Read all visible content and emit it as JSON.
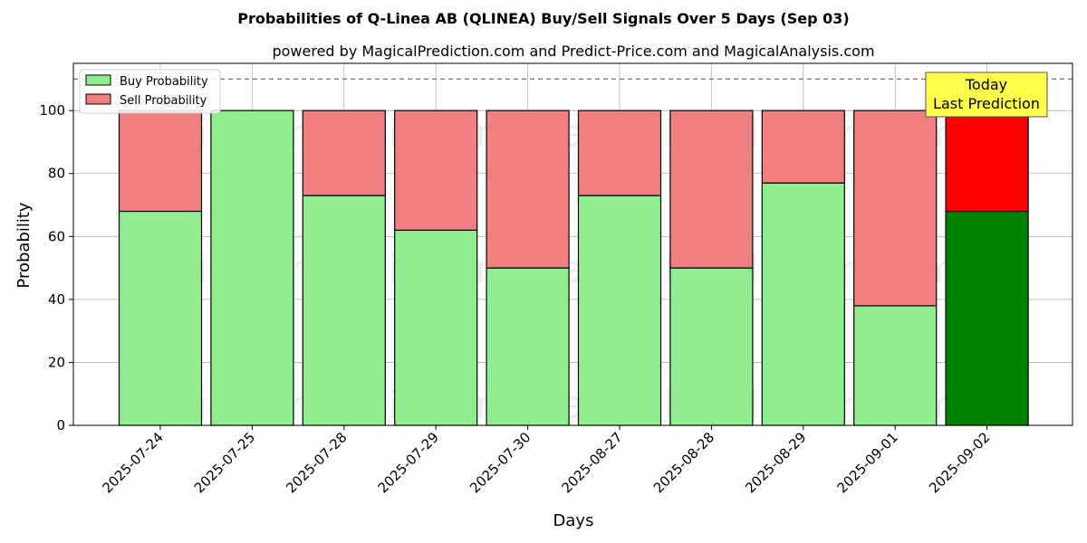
{
  "chart_data": {
    "type": "bar",
    "stacked": true,
    "title": "Probabilities of Q-Linea AB (QLINEA) Buy/Sell Signals Over 5 Days (Sep 03)",
    "subtitle": "powered by MagicalPrediction.com and Predict-Price.com and MagicalAnalysis.com",
    "xlabel": "Days",
    "ylabel": "Probability",
    "ylim": [
      0,
      115
    ],
    "yticks": [
      0,
      20,
      40,
      60,
      80,
      100
    ],
    "grid": true,
    "legend_position": "top-left",
    "reference_line": 110,
    "categories": [
      "2025-07-24",
      "2025-07-25",
      "2025-07-28",
      "2025-07-29",
      "2025-07-30",
      "2025-08-27",
      "2025-08-28",
      "2025-08-29",
      "2025-09-01",
      "2025-09-02"
    ],
    "series": [
      {
        "name": "Buy Probability",
        "values": [
          68,
          100,
          73,
          62,
          50,
          73,
          50,
          77,
          38,
          68
        ],
        "color": "#90ee90",
        "highlight_color": "#008000"
      },
      {
        "name": "Sell Probability",
        "values": [
          32,
          0,
          27,
          38,
          50,
          27,
          50,
          23,
          62,
          32
        ],
        "color": "#f08080",
        "highlight_color": "#ff0000"
      }
    ],
    "highlight_index": 9,
    "annotation": {
      "lines": [
        "Today",
        "Last Prediction"
      ],
      "color": "#ffff4d"
    },
    "watermarks": [
      "MagicalAnalysis.com",
      "MagicalPrediction.com"
    ]
  }
}
